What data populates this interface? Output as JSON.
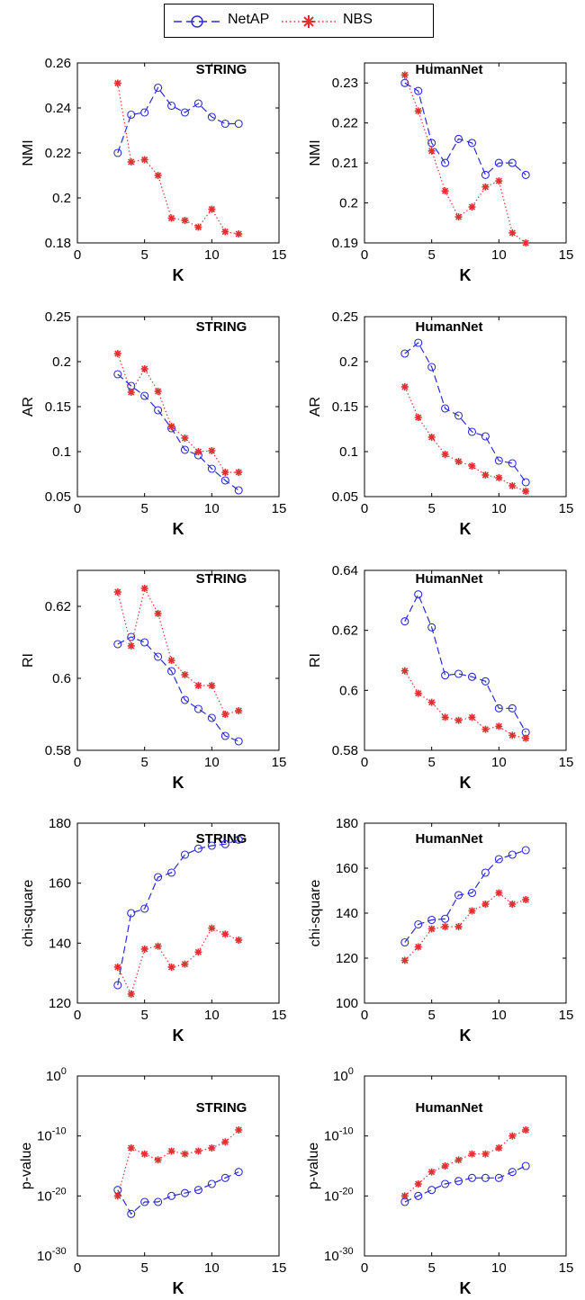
{
  "legend": {
    "entries": [
      {
        "label": "NetAP",
        "color": "#2b2bd9",
        "marker": "circle",
        "line": "dashed"
      },
      {
        "label": "NBS",
        "color": "#e03030",
        "marker": "asterisk",
        "line": "dotted"
      }
    ]
  },
  "chart_data": [
    {
      "type": "line",
      "title": "STRING",
      "xlabel": "K",
      "ylabel": "NMI",
      "xlim": [
        0,
        15
      ],
      "ylim": [
        0.18,
        0.26
      ],
      "xticks": [
        "0",
        "5",
        "10",
        "15"
      ],
      "yticks": [
        "0.18",
        "0.2",
        "0.22",
        "0.24",
        "0.26"
      ],
      "yscale": "linear",
      "x": [
        3,
        4,
        5,
        6,
        7,
        8,
        9,
        10,
        11,
        12
      ],
      "series": [
        {
          "name": "NetAP",
          "values": [
            0.22,
            0.237,
            0.238,
            0.249,
            0.241,
            0.238,
            0.242,
            0.236,
            0.233,
            0.233
          ]
        },
        {
          "name": "NBS",
          "values": [
            0.251,
            0.216,
            0.217,
            0.21,
            0.191,
            0.19,
            0.187,
            0.195,
            0.185,
            0.184
          ]
        }
      ]
    },
    {
      "type": "line",
      "title": "HumanNet",
      "xlabel": "K",
      "ylabel": "NMI",
      "xlim": [
        0,
        15
      ],
      "ylim": [
        0.19,
        0.235
      ],
      "xticks": [
        "0",
        "5",
        "10",
        "15"
      ],
      "yticks": [
        "0.19",
        "0.2",
        "0.21",
        "0.22",
        "0.23"
      ],
      "yscale": "linear",
      "x": [
        3,
        4,
        5,
        6,
        7,
        8,
        9,
        10,
        11,
        12
      ],
      "series": [
        {
          "name": "NetAP",
          "values": [
            0.23,
            0.228,
            0.215,
            0.21,
            0.216,
            0.215,
            0.207,
            0.21,
            0.21,
            0.207
          ]
        },
        {
          "name": "NBS",
          "values": [
            0.232,
            0.223,
            0.213,
            0.203,
            0.1965,
            0.199,
            0.204,
            0.2055,
            0.1925,
            0.19
          ]
        }
      ]
    },
    {
      "type": "line",
      "title": "STRING",
      "xlabel": "K",
      "ylabel": "AR",
      "xlim": [
        0,
        15
      ],
      "ylim": [
        0.05,
        0.25
      ],
      "xticks": [
        "0",
        "5",
        "10",
        "15"
      ],
      "yticks": [
        "0.05",
        "0.1",
        "0.15",
        "0.2",
        "0.25"
      ],
      "yscale": "linear",
      "x": [
        3,
        4,
        5,
        6,
        7,
        8,
        9,
        10,
        11,
        12
      ],
      "series": [
        {
          "name": "NetAP",
          "values": [
            0.186,
            0.173,
            0.162,
            0.146,
            0.126,
            0.102,
            0.096,
            0.081,
            0.068,
            0.057
          ]
        },
        {
          "name": "NBS",
          "values": [
            0.209,
            0.166,
            0.192,
            0.167,
            0.128,
            0.115,
            0.1,
            0.101,
            0.077,
            0.077
          ]
        }
      ]
    },
    {
      "type": "line",
      "title": "HumanNet",
      "xlabel": "K",
      "ylabel": "AR",
      "xlim": [
        0,
        15
      ],
      "ylim": [
        0.05,
        0.25
      ],
      "xticks": [
        "0",
        "5",
        "10",
        "15"
      ],
      "yticks": [
        "0.05",
        "0.1",
        "0.15",
        "0.2",
        "0.25"
      ],
      "yscale": "linear",
      "x": [
        3,
        4,
        5,
        6,
        7,
        8,
        9,
        10,
        11,
        12
      ],
      "series": [
        {
          "name": "NetAP",
          "values": [
            0.209,
            0.221,
            0.194,
            0.148,
            0.14,
            0.122,
            0.117,
            0.09,
            0.087,
            0.066
          ]
        },
        {
          "name": "NBS",
          "values": [
            0.172,
            0.138,
            0.116,
            0.097,
            0.089,
            0.084,
            0.074,
            0.071,
            0.062,
            0.056
          ]
        }
      ]
    },
    {
      "type": "line",
      "title": "STRING",
      "xlabel": "K",
      "ylabel": "RI",
      "xlim": [
        0,
        15
      ],
      "ylim": [
        0.58,
        0.63
      ],
      "xticks": [
        "0",
        "5",
        "10",
        "15"
      ],
      "yticks": [
        "0.58",
        "0.6",
        "0.62"
      ],
      "yscale": "linear",
      "x": [
        3,
        4,
        5,
        6,
        7,
        8,
        9,
        10,
        11,
        12
      ],
      "series": [
        {
          "name": "NetAP",
          "values": [
            0.6095,
            0.6115,
            0.61,
            0.606,
            0.602,
            0.594,
            0.5915,
            0.589,
            0.584,
            0.5825
          ]
        },
        {
          "name": "NBS",
          "values": [
            0.624,
            0.609,
            0.625,
            0.618,
            0.605,
            0.601,
            0.598,
            0.598,
            0.59,
            0.591
          ]
        }
      ]
    },
    {
      "type": "line",
      "title": "HumanNet",
      "xlabel": "K",
      "ylabel": "RI",
      "xlim": [
        0,
        15
      ],
      "ylim": [
        0.58,
        0.64
      ],
      "xticks": [
        "0",
        "5",
        "10",
        "15"
      ],
      "yticks": [
        "0.58",
        "0.6",
        "0.62",
        "0.64"
      ],
      "yscale": "linear",
      "x": [
        3,
        4,
        5,
        6,
        7,
        8,
        9,
        10,
        11,
        12
      ],
      "series": [
        {
          "name": "NetAP",
          "values": [
            0.623,
            0.632,
            0.621,
            0.605,
            0.6055,
            0.6045,
            0.603,
            0.594,
            0.594,
            0.586
          ]
        },
        {
          "name": "NBS",
          "values": [
            0.6065,
            0.599,
            0.596,
            0.591,
            0.59,
            0.591,
            0.587,
            0.588,
            0.585,
            0.584
          ]
        }
      ]
    },
    {
      "type": "line",
      "title": "STRING",
      "xlabel": "K",
      "ylabel": "chi-square",
      "xlim": [
        0,
        15
      ],
      "ylim": [
        120,
        180
      ],
      "xticks": [
        "0",
        "5",
        "10",
        "15"
      ],
      "yticks": [
        "120",
        "140",
        "160",
        "180"
      ],
      "yscale": "linear",
      "x": [
        3,
        4,
        5,
        6,
        7,
        8,
        9,
        10,
        11,
        12
      ],
      "series": [
        {
          "name": "NetAP",
          "values": [
            126,
            150,
            151.5,
            162,
            163.5,
            169.5,
            171.5,
            172.5,
            173,
            174.5
          ]
        },
        {
          "name": "NBS",
          "values": [
            132,
            123,
            138,
            139,
            132,
            133,
            137,
            145,
            143,
            141
          ]
        }
      ]
    },
    {
      "type": "line",
      "title": "HumanNet",
      "xlabel": "K",
      "ylabel": "chi-square",
      "xlim": [
        0,
        15
      ],
      "ylim": [
        100,
        180
      ],
      "xticks": [
        "0",
        "5",
        "10",
        "15"
      ],
      "yticks": [
        "100",
        "120",
        "140",
        "160",
        "180"
      ],
      "yscale": "linear",
      "x": [
        3,
        4,
        5,
        6,
        7,
        8,
        9,
        10,
        11,
        12
      ],
      "series": [
        {
          "name": "NetAP",
          "values": [
            127,
            135,
            137,
            137.5,
            148,
            149,
            158,
            164,
            166,
            168
          ]
        },
        {
          "name": "NBS",
          "values": [
            119,
            125,
            133,
            134,
            134,
            141,
            144,
            149,
            144,
            146
          ]
        }
      ]
    },
    {
      "type": "line",
      "title": "STRING",
      "xlabel": "K",
      "ylabel": "p-value",
      "xlim": [
        0,
        15
      ],
      "ylim": [
        1e-30,
        1
      ],
      "xticks": [
        "0",
        "5",
        "10",
        "15"
      ],
      "yticks_exponents": [
        "0",
        "-10",
        "-20",
        "-30"
      ],
      "yscale": "log",
      "x": [
        3,
        4,
        5,
        6,
        7,
        8,
        9,
        10,
        11,
        12
      ],
      "series": [
        {
          "name": "NetAP",
          "values": [
            1e-19,
            1e-23,
            1e-21,
            1e-21,
            1e-20,
            3e-20,
            1e-19,
            1e-18,
            1e-17,
            1e-16
          ]
        },
        {
          "name": "NBS",
          "values": [
            1e-20,
            1e-12,
            1e-13,
            1e-14,
            3e-13,
            1e-13,
            3e-13,
            1e-12,
            1e-11,
            1e-09
          ]
        }
      ]
    },
    {
      "type": "line",
      "title": "HumanNet",
      "xlabel": "K",
      "ylabel": "p-value",
      "xlim": [
        0,
        15
      ],
      "ylim": [
        1e-30,
        1
      ],
      "xticks": [
        "0",
        "5",
        "10",
        "15"
      ],
      "yticks_exponents": [
        "0",
        "-10",
        "-20",
        "-30"
      ],
      "yscale": "log",
      "x": [
        3,
        4,
        5,
        6,
        7,
        8,
        9,
        10,
        11,
        12
      ],
      "series": [
        {
          "name": "NetAP",
          "values": [
            1e-21,
            1e-20,
            1e-19,
            1e-18,
            3e-18,
            1e-17,
            1e-17,
            1e-17,
            1e-16,
            1e-15
          ]
        },
        {
          "name": "NBS",
          "values": [
            1e-20,
            1e-18,
            1e-16,
            1e-15,
            1e-14,
            1e-13,
            1e-13,
            1e-12,
            1e-10,
            1e-09
          ]
        }
      ]
    }
  ]
}
